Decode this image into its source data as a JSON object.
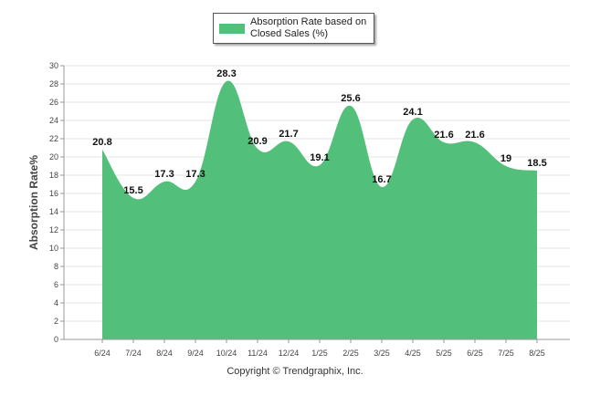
{
  "chart_data": {
    "type": "area",
    "categories": [
      "6/24",
      "7/24",
      "8/24",
      "9/24",
      "10/24",
      "11/24",
      "12/24",
      "1/25",
      "2/25",
      "3/25",
      "4/25",
      "5/25",
      "6/25",
      "7/25",
      "8/25"
    ],
    "series": [
      {
        "name": "Absorption Rate based on Closed Sales (%)",
        "values": [
          20.8,
          15.5,
          17.3,
          17.3,
          28.3,
          20.9,
          21.7,
          19.1,
          25.6,
          16.7,
          24.1,
          21.6,
          21.6,
          19,
          18.5
        ],
        "color": "#52bf7a"
      }
    ],
    "data_labels": [
      "20.8",
      "15.5",
      "17.3",
      "17.3",
      "28.3",
      "20.9",
      "21.7",
      "19.1",
      "25.6",
      "16.7",
      "24.1",
      "21.6",
      "21.6",
      "19",
      "18.5"
    ],
    "ylabel": "Absorption Rate%",
    "xlabel": "",
    "ylim": [
      0,
      30
    ],
    "yticks": [
      0,
      2,
      4,
      6,
      8,
      10,
      12,
      14,
      16,
      18,
      20,
      22,
      24,
      26,
      28,
      30
    ],
    "grid": true,
    "legend_position": "top-center"
  },
  "legend": {
    "label": "Absorption Rate based on Closed Sales (%)",
    "color": "#52bf7a"
  },
  "footer": {
    "copyright": "Copyright © Trendgraphix, Inc."
  }
}
